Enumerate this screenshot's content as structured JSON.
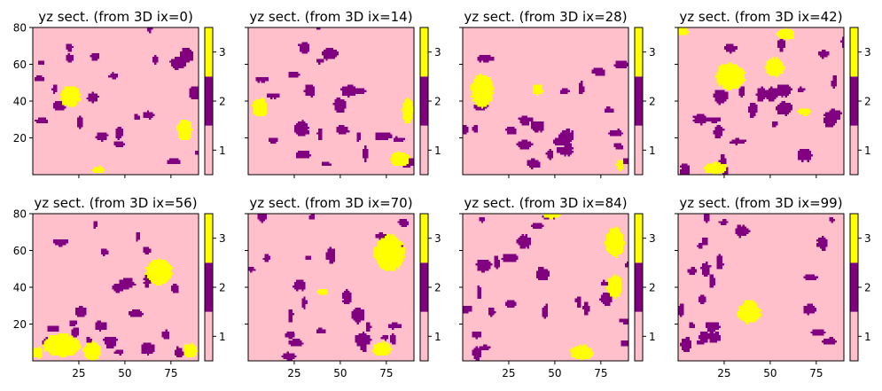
{
  "colors": {
    "facies_1": "#FFC0CB",
    "facies_2": "#800080",
    "facies_3": "#FFFF00"
  },
  "chart_data": [
    {
      "type": "heatmap",
      "title": "yz sect. (from 3D ix=0)",
      "seed": 11,
      "x_ticks": [],
      "y_ticks": [
        "20",
        "40",
        "60",
        "80"
      ],
      "xlim": [
        0,
        90
      ],
      "ylim": [
        0,
        80
      ],
      "colorbar_ticks": [
        "1",
        "2",
        "3"
      ],
      "colorbar_values": [
        1,
        2,
        3
      ],
      "blobs3": [
        [
          20,
          42,
          5,
          6
        ],
        [
          82,
          24,
          4,
          6
        ],
        [
          43,
          83,
          4,
          3
        ],
        [
          35,
          2,
          3,
          2
        ]
      ]
    },
    {
      "type": "heatmap",
      "title": "yz sect. (from 3D ix=14)",
      "seed": 23,
      "x_ticks": [],
      "y_ticks": [],
      "xlim": [
        0,
        90
      ],
      "ylim": [
        0,
        80
      ],
      "colorbar_ticks": [
        "1",
        "2",
        "3"
      ],
      "colorbar_values": [
        1,
        2,
        3
      ],
      "blobs3": [
        [
          6,
          36,
          4,
          5
        ],
        [
          86,
          34,
          3,
          7
        ],
        [
          82,
          8,
          5,
          4
        ]
      ]
    },
    {
      "type": "heatmap",
      "title": "yz sect. (from 3D ix=28)",
      "seed": 37,
      "x_ticks": [],
      "y_ticks": [],
      "xlim": [
        0,
        90
      ],
      "ylim": [
        0,
        80
      ],
      "colorbar_ticks": [
        "1",
        "2",
        "3"
      ],
      "colorbar_values": [
        1,
        2,
        3
      ],
      "blobs3": [
        [
          10,
          45,
          6,
          9
        ],
        [
          40,
          46,
          3,
          3
        ],
        [
          85,
          5,
          2,
          3
        ]
      ]
    },
    {
      "type": "heatmap",
      "title": "yz sect. (from 3D ix=42)",
      "seed": 41,
      "x_ticks": [],
      "y_ticks": [],
      "xlim": [
        0,
        90
      ],
      "ylim": [
        0,
        80
      ],
      "colorbar_ticks": [
        "1",
        "2",
        "3"
      ],
      "colorbar_values": [
        1,
        2,
        3
      ],
      "blobs3": [
        [
          28,
          53,
          8,
          7
        ],
        [
          52,
          58,
          5,
          5
        ],
        [
          58,
          76,
          5,
          3
        ],
        [
          2,
          78,
          3,
          3
        ],
        [
          68,
          34,
          3,
          2
        ],
        [
          20,
          3,
          6,
          3
        ]
      ]
    },
    {
      "type": "heatmap",
      "title": "yz sect. (from 3D ix=56)",
      "seed": 53,
      "x_ticks": [
        "25",
        "50",
        "75"
      ],
      "y_ticks": [
        "20",
        "40",
        "60",
        "80"
      ],
      "xlim": [
        0,
        90
      ],
      "ylim": [
        0,
        80
      ],
      "colorbar_ticks": [
        "1",
        "2",
        "3"
      ],
      "colorbar_values": [
        1,
        2,
        3
      ],
      "blobs3": [
        [
          68,
          48,
          7,
          7
        ],
        [
          15,
          8,
          10,
          6
        ],
        [
          32,
          5,
          5,
          5
        ],
        [
          85,
          5,
          4,
          4
        ],
        [
          2,
          4,
          3,
          3
        ]
      ]
    },
    {
      "type": "heatmap",
      "title": "yz sect. (from 3D ix=70)",
      "seed": 67,
      "x_ticks": [
        "25",
        "50",
        "75"
      ],
      "y_ticks": [],
      "xlim": [
        0,
        90
      ],
      "ylim": [
        0,
        80
      ],
      "colorbar_ticks": [
        "1",
        "2",
        "3"
      ],
      "colorbar_values": [
        1,
        2,
        3
      ],
      "blobs3": [
        [
          76,
          58,
          8,
          10
        ],
        [
          40,
          37,
          3,
          2
        ],
        [
          72,
          6,
          5,
          4
        ]
      ]
    },
    {
      "type": "heatmap",
      "title": "yz sect. (from 3D ix=84)",
      "seed": 79,
      "x_ticks": [
        "25",
        "50",
        "75"
      ],
      "y_ticks": [],
      "xlim": [
        0,
        90
      ],
      "ylim": [
        0,
        80
      ],
      "colorbar_ticks": [
        "1",
        "2",
        "3"
      ],
      "colorbar_values": [
        1,
        2,
        3
      ],
      "blobs3": [
        [
          82,
          64,
          5,
          8
        ],
        [
          82,
          40,
          4,
          6
        ],
        [
          48,
          80,
          5,
          3
        ],
        [
          64,
          4,
          6,
          4
        ]
      ]
    },
    {
      "type": "heatmap",
      "title": "yz sect. (from 3D ix=99)",
      "seed": 97,
      "x_ticks": [
        "25",
        "50",
        "75"
      ],
      "y_ticks": [],
      "xlim": [
        0,
        90
      ],
      "ylim": [
        0,
        80
      ],
      "colorbar_ticks": [
        "1",
        "2",
        "3"
      ],
      "colorbar_values": [
        1,
        2,
        3
      ],
      "blobs3": [
        [
          38,
          26,
          6,
          6
        ]
      ]
    }
  ]
}
